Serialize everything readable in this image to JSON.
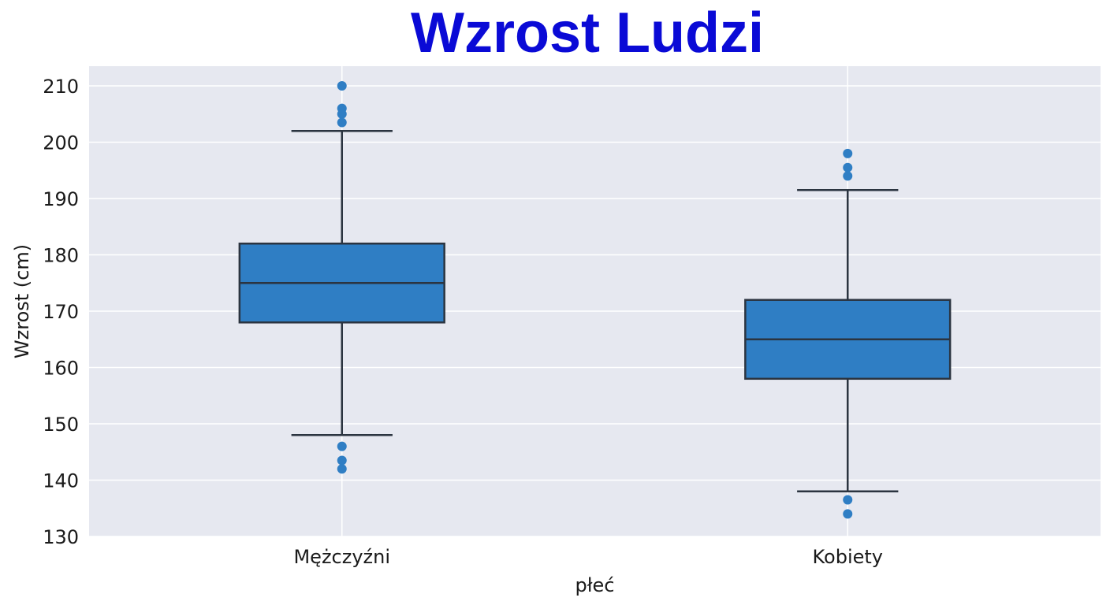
{
  "colors": {
    "title": "#0a0ad6",
    "plot_background": "#e6e8f0",
    "grid": "#ffffff",
    "box_fill": "#2f7ec4",
    "box_edge": "#2b3440",
    "whisker": "#2b3440",
    "outlier": "#2f7ec4"
  },
  "chart_data": {
    "type": "box",
    "title": "Wzrost Ludzi",
    "xlabel": "płeć",
    "ylabel": "Wzrost (cm)",
    "ylim": [
      130,
      213.5
    ],
    "yticks": [
      130,
      140,
      150,
      160,
      170,
      180,
      190,
      200,
      210
    ],
    "grid": true,
    "categories": [
      "Mężczyźni",
      "Kobiety"
    ],
    "boxes": [
      {
        "category": "Mężczyźni",
        "whisker_low": 148,
        "q1": 168,
        "median": 175,
        "q3": 182,
        "whisker_high": 202,
        "outliers": [
          210,
          206,
          205,
          203.5,
          146,
          143.5,
          142
        ]
      },
      {
        "category": "Kobiety",
        "whisker_low": 138,
        "q1": 158,
        "median": 165,
        "q3": 172,
        "whisker_high": 191.5,
        "outliers": [
          198,
          195.5,
          194,
          136.5,
          134
        ]
      }
    ]
  }
}
